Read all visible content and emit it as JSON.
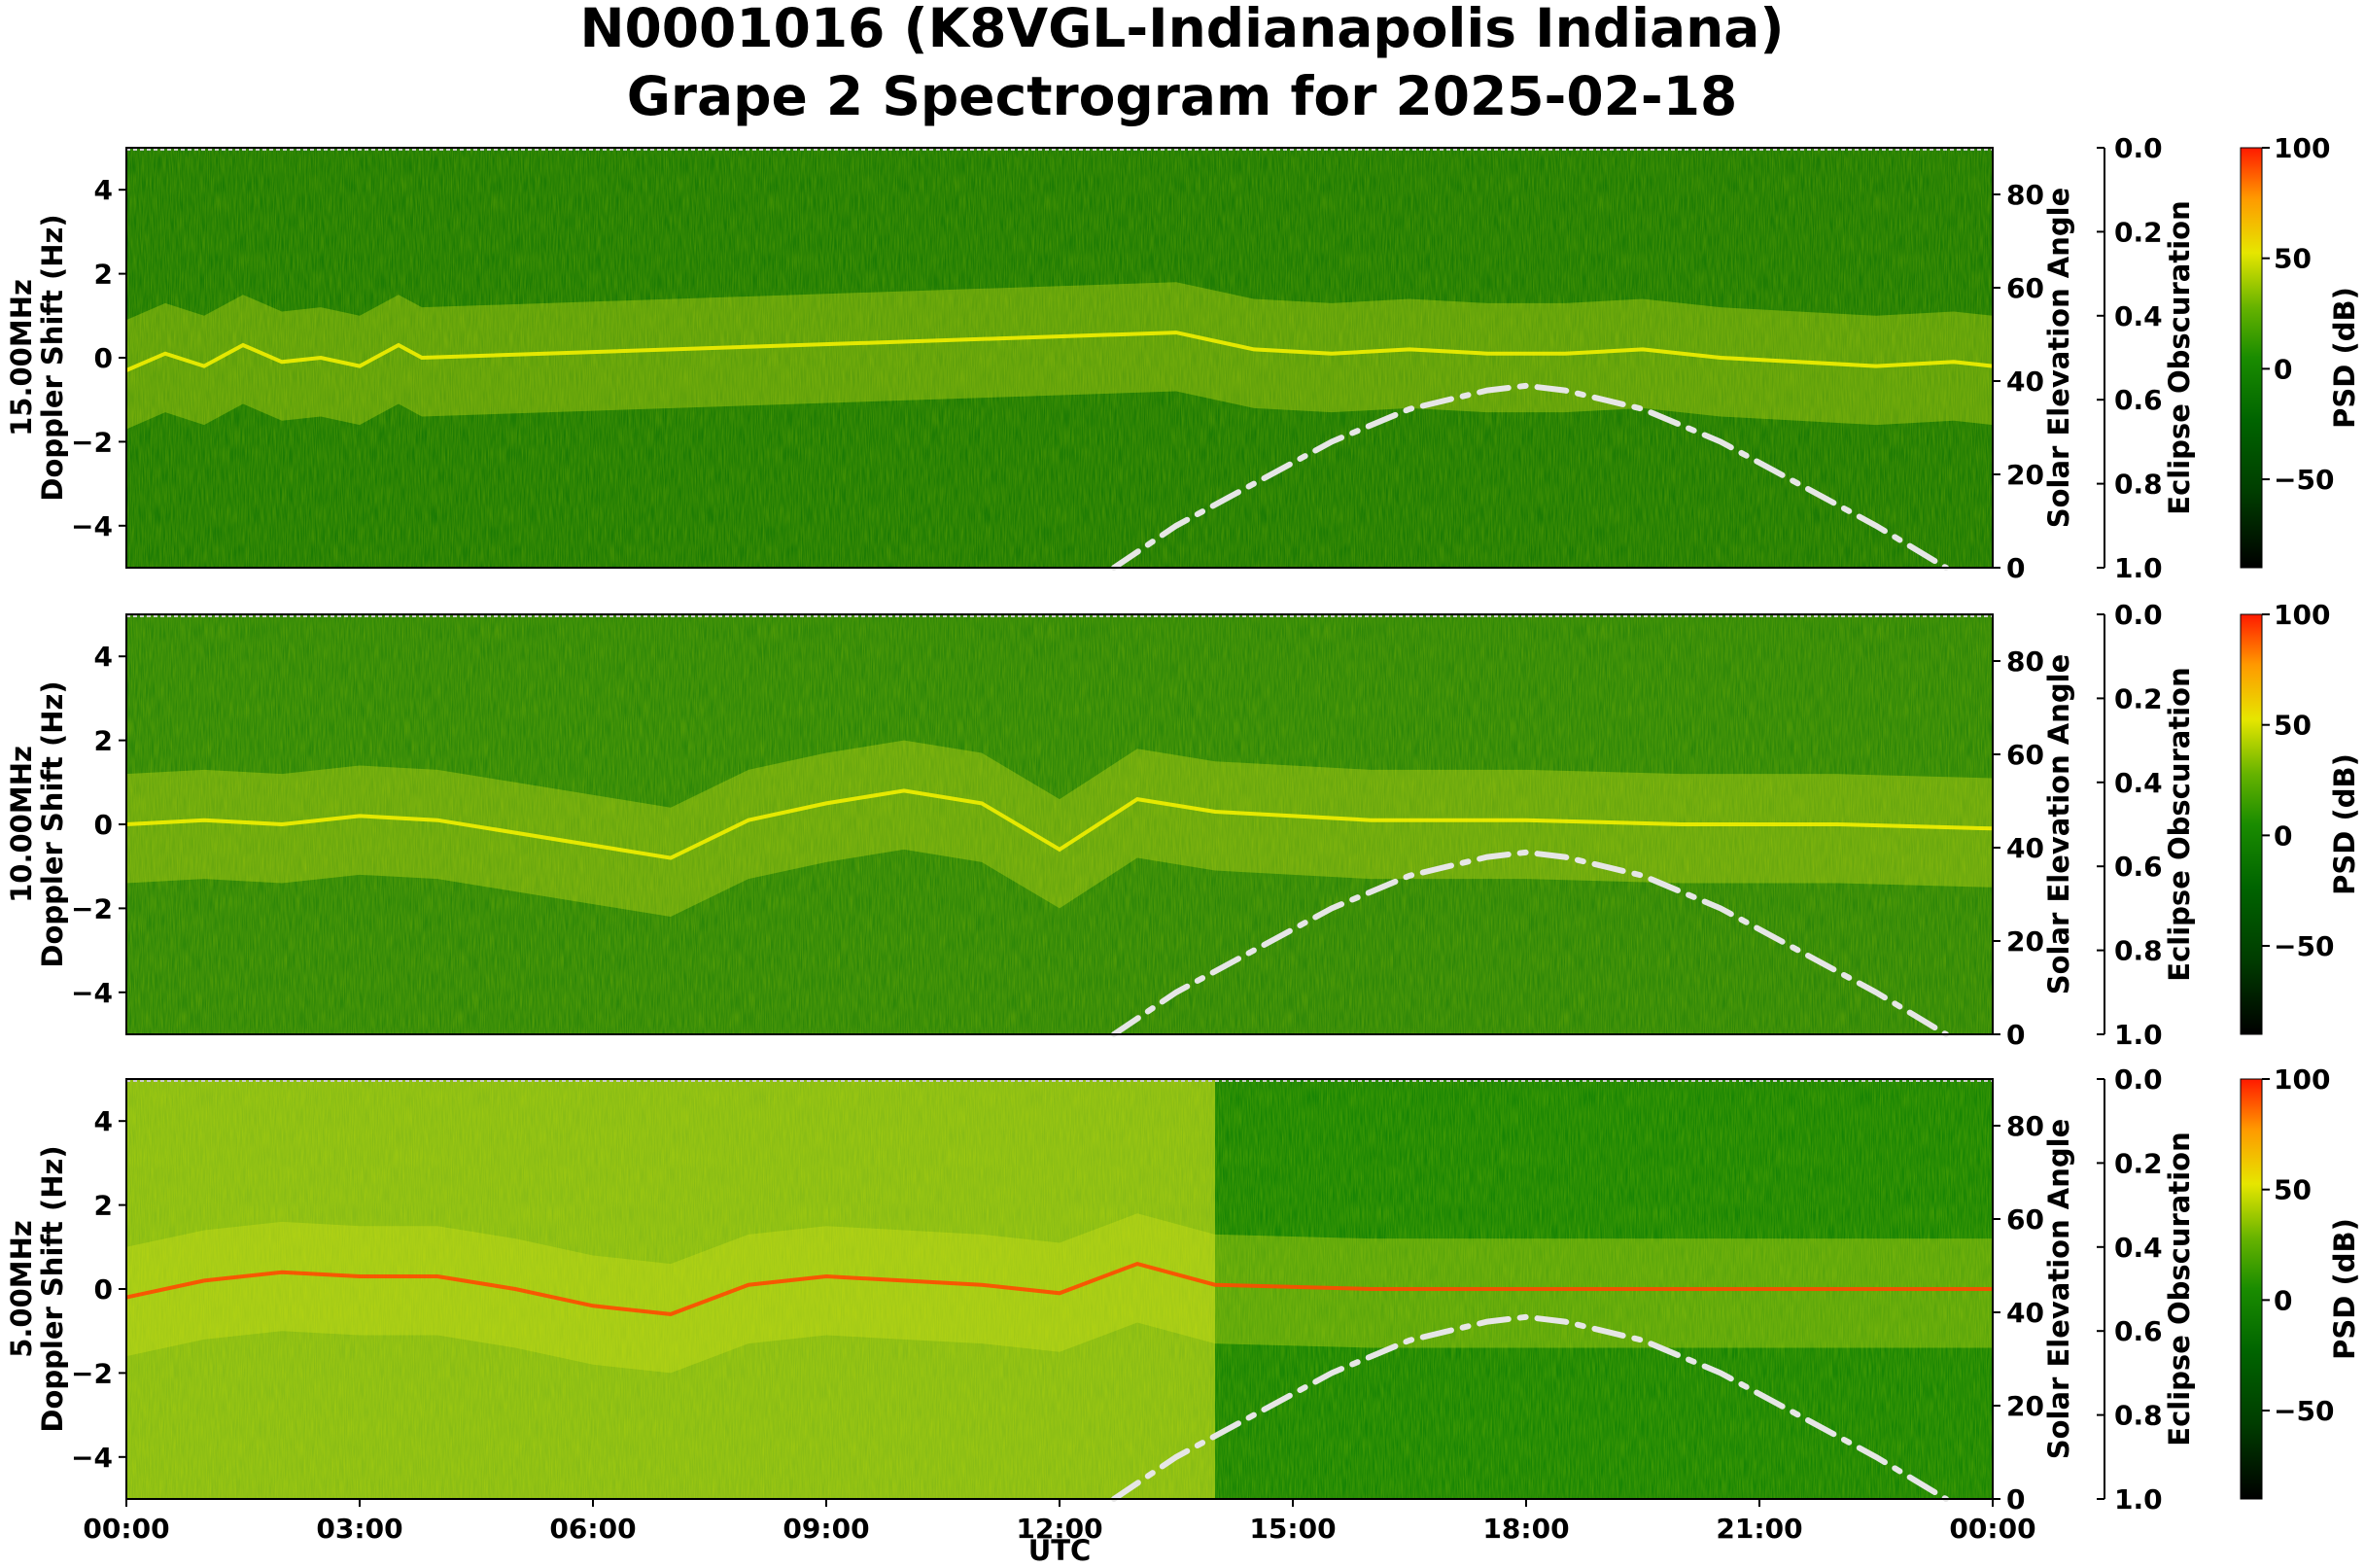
{
  "title_line1": "N0001016 (K8VGL-Indianapolis Indiana)",
  "title_line2": "Grape 2 Spectrogram for 2025-02-18",
  "xlabel": "UTC",
  "chart_data": {
    "type": "heatmap",
    "x_ticks": [
      "00:00",
      "03:00",
      "06:00",
      "09:00",
      "12:00",
      "15:00",
      "18:00",
      "21:00",
      "00:00"
    ],
    "x_range_hours": [
      0,
      24
    ],
    "y_ticks": [
      "4",
      "2",
      "0",
      "−2",
      "−4"
    ],
    "ylim": [
      -5,
      5
    ],
    "elev_ticks": [
      "80",
      "60",
      "40",
      "20",
      "0"
    ],
    "elev_range": [
      0,
      90
    ],
    "eclipse_ticks": [
      "0.0",
      "0.2",
      "0.4",
      "0.6",
      "0.8",
      "1.0"
    ],
    "eclipse_range": [
      0.0,
      1.0
    ],
    "colorbar_ticks": [
      "100",
      "50",
      "0",
      "−50"
    ],
    "colorbar_range": [
      -90,
      100
    ],
    "colorbar_label": "PSD (dB)",
    "right_label_elev": "Solar Elevation Angle",
    "right_label_eclipse": "Eclipse Obscuration",
    "solar_elevation_curve": {
      "x_hours": [
        12.7,
        13.5,
        14.5,
        15.5,
        16.5,
        17.5,
        18.0,
        18.5,
        19.5,
        20.5,
        21.5,
        22.5,
        23.4
      ],
      "y_deg": [
        0,
        9,
        18,
        27,
        34,
        38,
        39,
        38,
        34,
        27,
        18,
        9,
        0
      ],
      "style": "dash-dot",
      "color": "#e6e6e6"
    },
    "panels": [
      {
        "ylabel_freq": "15.00MHz",
        "ylabel": "Doppler Shift (Hz)",
        "trace": {
          "x_hours": [
            0,
            0.5,
            1.0,
            1.5,
            2.0,
            2.5,
            3.0,
            3.5,
            3.8,
            13.5,
            14.5,
            15.5,
            16.5,
            17.5,
            18.5,
            19.5,
            20.5,
            21.5,
            22.5,
            23.5,
            24.0
          ],
          "y_hz": [
            -0.3,
            0.1,
            -0.2,
            0.3,
            -0.1,
            0.0,
            -0.2,
            0.3,
            0.0,
            0.6,
            0.2,
            0.1,
            0.2,
            0.1,
            0.1,
            0.2,
            0.0,
            -0.1,
            -0.2,
            -0.1,
            -0.2
          ]
        }
      },
      {
        "ylabel_freq": "10.00MHz",
        "ylabel": "Doppler Shift (Hz)",
        "trace": {
          "x_hours": [
            0,
            1,
            2,
            3,
            4,
            5,
            6,
            7,
            8,
            9,
            10,
            11,
            12,
            13,
            14,
            16,
            18,
            20,
            22,
            24
          ],
          "y_hz": [
            0.0,
            0.1,
            0.0,
            0.2,
            0.1,
            -0.2,
            -0.5,
            -0.8,
            0.1,
            0.5,
            0.8,
            0.5,
            -0.6,
            0.6,
            0.3,
            0.1,
            0.1,
            0.0,
            0.0,
            -0.1
          ]
        }
      },
      {
        "ylabel_freq": "5.00MHz",
        "ylabel": "Doppler Shift (Hz)",
        "trace": {
          "x_hours": [
            0,
            1,
            2,
            3,
            4,
            5,
            6,
            7,
            8,
            9,
            10,
            11,
            12,
            13,
            14,
            16,
            18,
            20,
            22,
            24
          ],
          "y_hz": [
            -0.2,
            0.2,
            0.4,
            0.3,
            0.3,
            0.0,
            -0.4,
            -0.6,
            0.1,
            0.3,
            0.2,
            0.1,
            -0.1,
            0.6,
            0.1,
            0.0,
            0.0,
            0.0,
            0.0,
            0.0
          ]
        }
      }
    ]
  }
}
